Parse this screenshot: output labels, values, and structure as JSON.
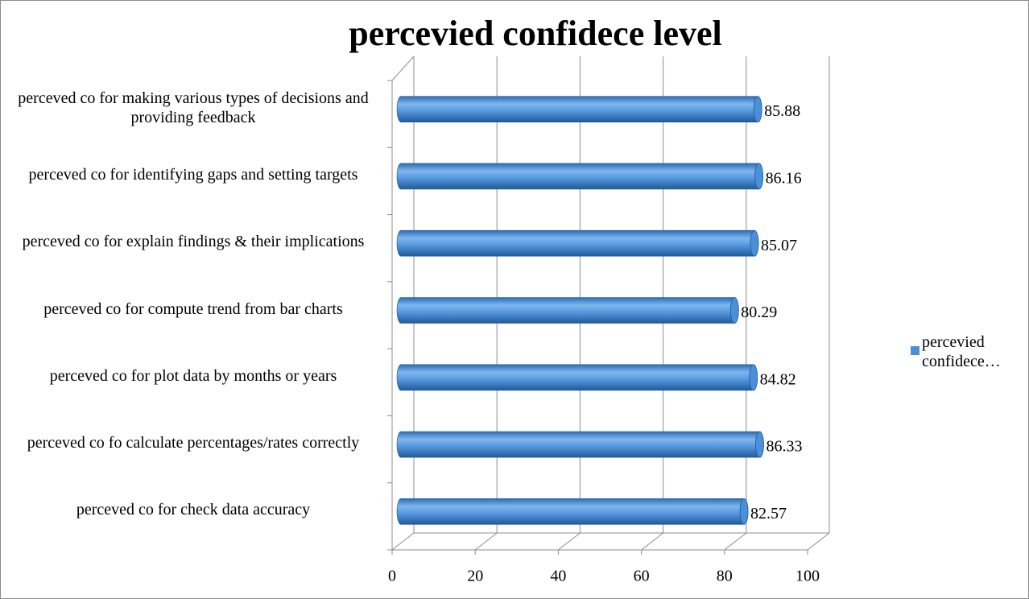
{
  "chart_data": {
    "type": "bar",
    "orientation": "horizontal",
    "title": "percevied confidece level",
    "categories": [
      "perceved co for making various types of decisions and providing feedback",
      "perceved co for identifying gaps and setting targets",
      "perceved co for explain findings & their implications",
      "perceved co for compute trend from bar charts",
      "perceved co for plot data by months or years",
      "perceved co fo calculate percentages/rates correctly",
      "perceved co for check data accuracy"
    ],
    "series": [
      {
        "name": "percevied confidece…",
        "color": "#4a8fd8",
        "values": [
          85.88,
          86.16,
          85.07,
          80.29,
          84.82,
          86.33,
          82.57
        ]
      }
    ],
    "xlim": [
      0,
      100
    ],
    "xticks": [
      0,
      20,
      40,
      60,
      80,
      100
    ],
    "grid": true,
    "legend": "right"
  }
}
